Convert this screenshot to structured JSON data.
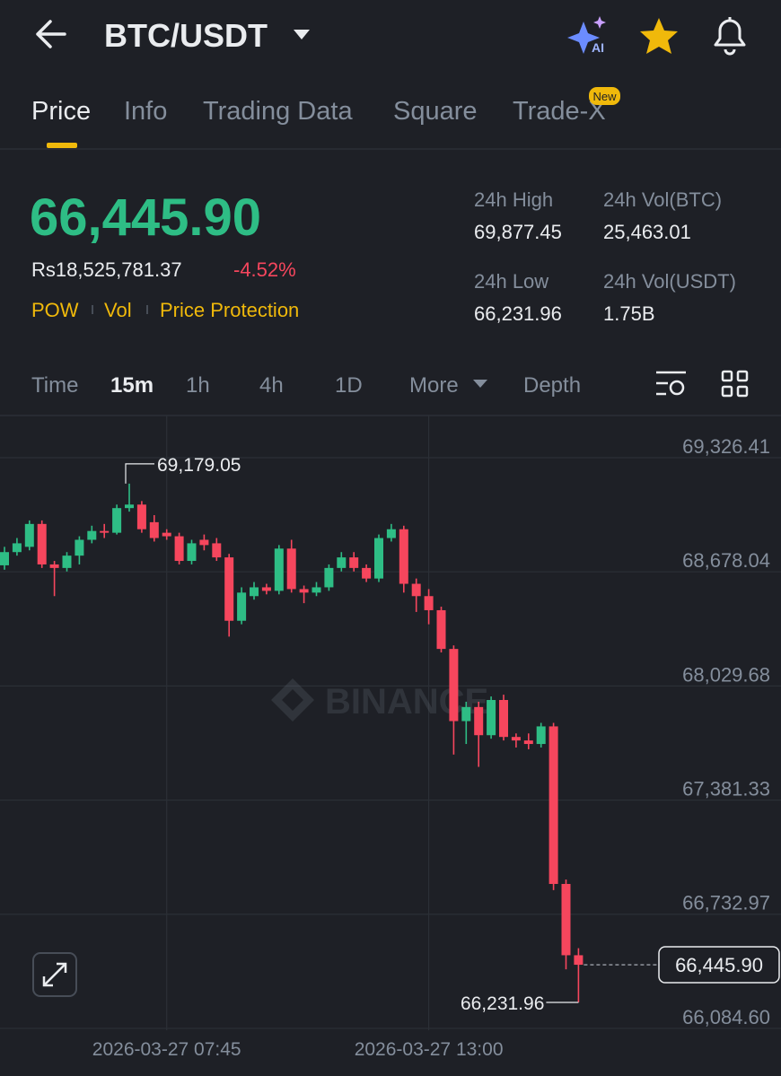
{
  "header": {
    "pair": "BTC/USDT"
  },
  "tabs": [
    "Price",
    "Info",
    "Trading Data",
    "Square",
    "Trade-X"
  ],
  "tab_badge": "New",
  "price": {
    "last": "66,445.90",
    "fiat": "Rs18,525,781.37",
    "change": "-4.52%",
    "tags": [
      "POW",
      "Vol",
      "Price Protection"
    ]
  },
  "stats": [
    {
      "label": "24h High",
      "value": "69,877.45"
    },
    {
      "label": "24h Vol(BTC)",
      "value": "25,463.01"
    },
    {
      "label": "24h Low",
      "value": "66,231.96"
    },
    {
      "label": "24h Vol(USDT)",
      "value": "1.75B"
    }
  ],
  "intervals": [
    "Time",
    "15m",
    "1h",
    "4h",
    "1D",
    "More",
    "Depth"
  ],
  "chart_data": {
    "type": "candlestick",
    "watermark": "BINANCE",
    "categories": [
      null,
      null,
      null,
      null,
      null,
      null,
      null,
      null,
      null,
      null,
      null,
      null,
      null,
      "2026-03-27 07:45",
      null,
      null,
      null,
      null,
      null,
      null,
      null,
      null,
      null,
      null,
      null,
      null,
      null,
      null,
      null,
      null,
      null,
      null,
      null,
      null,
      "2026-03-27 13:00",
      null,
      null,
      null,
      null,
      null,
      null,
      null,
      null,
      null,
      null,
      null,
      null
    ],
    "open": [
      68715,
      68790,
      68820,
      68950,
      68720,
      68700,
      68770,
      68860,
      68910,
      68900,
      69040,
      69060,
      68960,
      68900,
      68880,
      68740,
      68860,
      68840,
      68760,
      68400,
      68540,
      68590,
      68570,
      68810,
      68580,
      68560,
      68590,
      68700,
      68760,
      68700,
      68640,
      68870,
      68920,
      68610,
      68540,
      68460,
      68240,
      67830,
      67910,
      67750,
      67950,
      67740,
      67720,
      67700,
      67800,
      66905,
      66500
    ],
    "high": [
      68820,
      68870,
      68970,
      68970,
      68740,
      68790,
      68880,
      68940,
      68950,
      69060,
      69179.05,
      69080,
      69000,
      68920,
      68900,
      68860,
      68890,
      68870,
      68780,
      68590,
      68620,
      68610,
      68830,
      68860,
      68600,
      68620,
      68720,
      68790,
      68790,
      68720,
      68890,
      68950,
      68940,
      68640,
      68580,
      68480,
      68260,
      67940,
      67940,
      67970,
      67980,
      67760,
      67760,
      67820,
      67820,
      66930,
      66540
    ],
    "low": [
      68690,
      68770,
      68800,
      68700,
      68540,
      68680,
      68720,
      68840,
      68870,
      68890,
      69020,
      68900,
      68850,
      68860,
      68720,
      68720,
      68800,
      68740,
      68310,
      68380,
      68520,
      68550,
      68550,
      68560,
      68500,
      68540,
      68570,
      68680,
      68680,
      68620,
      68620,
      68850,
      68560,
      68450,
      68380,
      68220,
      67640,
      67700,
      67570,
      67730,
      67720,
      67680,
      67670,
      67680,
      66870,
      66420,
      66231.96
    ],
    "close": [
      68790,
      68840,
      68950,
      68720,
      68700,
      68770,
      68860,
      68910,
      68900,
      69040,
      69060,
      68920,
      68870,
      68880,
      68740,
      68840,
      68830,
      68760,
      68400,
      68560,
      68590,
      68570,
      68810,
      68580,
      68560,
      68590,
      68700,
      68760,
      68700,
      68640,
      68870,
      68920,
      68610,
      68540,
      68460,
      68240,
      67830,
      67910,
      67750,
      67950,
      67740,
      67720,
      67700,
      67800,
      66905,
      66500,
      66445.9
    ],
    "up_color": "#2ebd85",
    "down_color": "#f6465d",
    "max_label": "69,179.05",
    "min_label": "66,231.96",
    "last_label": "66,445.90",
    "ylim": [
      66074,
      69566
    ],
    "yticks": [
      {
        "value": 69326.41,
        "label": "69,326.41"
      },
      {
        "value": 68678.04,
        "label": "68,678.04"
      },
      {
        "value": 68029.68,
        "label": "68,029.68"
      },
      {
        "value": 67381.33,
        "label": "67,381.33"
      },
      {
        "value": 66732.97,
        "label": "66,732.97"
      },
      {
        "value": 66084.6,
        "label": "66,084.60"
      }
    ],
    "grid": true
  }
}
